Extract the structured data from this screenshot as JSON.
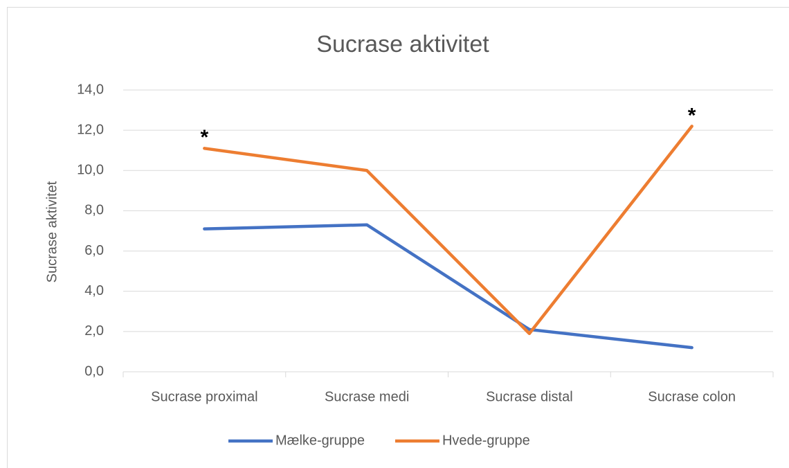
{
  "chart_data": {
    "type": "line",
    "title": "Sucrase aktivitet",
    "y_label": "Sucrase aktivitet",
    "categories": [
      "Sucrase proximal",
      "Sucrase medi",
      "Sucrase distal",
      "Sucrase colon"
    ],
    "series": [
      {
        "name": "Mælke-gruppe",
        "color": "#4472c4",
        "values": [
          7.1,
          7.3,
          2.1,
          1.2
        ]
      },
      {
        "name": "Hvede-gruppe",
        "color": "#ed7d31",
        "values": [
          11.1,
          10.0,
          1.9,
          12.2
        ],
        "annotations": [
          "*",
          null,
          null,
          "*"
        ]
      }
    ],
    "ylim": [
      0,
      14
    ],
    "yticks": [
      {
        "value": 0,
        "label": "0,0"
      },
      {
        "value": 2,
        "label": "2,0"
      },
      {
        "value": 4,
        "label": "4,0"
      },
      {
        "value": 6,
        "label": "6,0"
      },
      {
        "value": 8,
        "label": "8,0"
      },
      {
        "value": 10,
        "label": "10,0"
      },
      {
        "value": 12,
        "label": "12,0"
      },
      {
        "value": 14,
        "label": "14,0"
      }
    ],
    "grid": true,
    "legend": "bottom"
  }
}
